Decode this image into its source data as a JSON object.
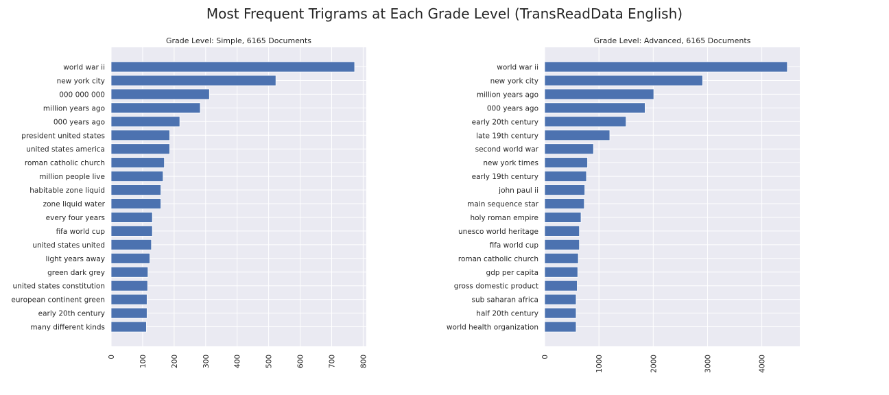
{
  "figure": {
    "title": "Most Frequent Trigrams at Each Grade Level (TransReadData English)"
  },
  "chart_data": [
    {
      "type": "bar",
      "orientation": "horizontal",
      "title": "Grade Level: Simple, 6165 Documents",
      "xlim": [
        0,
        810
      ],
      "xticks": [
        0,
        100,
        200,
        300,
        400,
        500,
        600,
        700,
        800
      ],
      "grid": true,
      "bar_color": "#4c72b0",
      "background": "#eaeaf2",
      "categories": [
        "world war ii",
        "new york city",
        "000 000 000",
        "million years ago",
        "000 years ago",
        "president united states",
        "united states america",
        "roman catholic church",
        "million people live",
        "habitable zone liquid",
        "zone liquid water",
        "every four years",
        "fifa world cup",
        "united states united",
        "light years away",
        "green dark grey",
        "united states constitution",
        "european continent green",
        "early 20th century",
        "many different kinds"
      ],
      "values": [
        773,
        523,
        312,
        283,
        218,
        186,
        186,
        169,
        165,
        158,
        158,
        131,
        131,
        128,
        123,
        117,
        116,
        114,
        114,
        112
      ]
    },
    {
      "type": "bar",
      "orientation": "horizontal",
      "title": "Grade Level: Advanced, 6165 Documents",
      "xlim": [
        0,
        4700
      ],
      "xticks": [
        0,
        1000,
        2000,
        3000,
        4000
      ],
      "grid": true,
      "bar_color": "#4c72b0",
      "background": "#eaeaf2",
      "categories": [
        "world war ii",
        "new york city",
        "million years ago",
        "000 years ago",
        "early 20th century",
        "late 19th century",
        "second world war",
        "new york times",
        "early 19th century",
        "john paul ii",
        "main sequence star",
        "holy roman empire",
        "unesco world heritage",
        "fifa world cup",
        "roman catholic church",
        "gdp per capita",
        "gross domestic product",
        "sub saharan africa",
        "half 20th century",
        "world health organization"
      ],
      "values": [
        4470,
        2910,
        2010,
        1850,
        1500,
        1200,
        900,
        790,
        770,
        740,
        730,
        670,
        640,
        640,
        620,
        610,
        600,
        580,
        580,
        580
      ]
    }
  ]
}
